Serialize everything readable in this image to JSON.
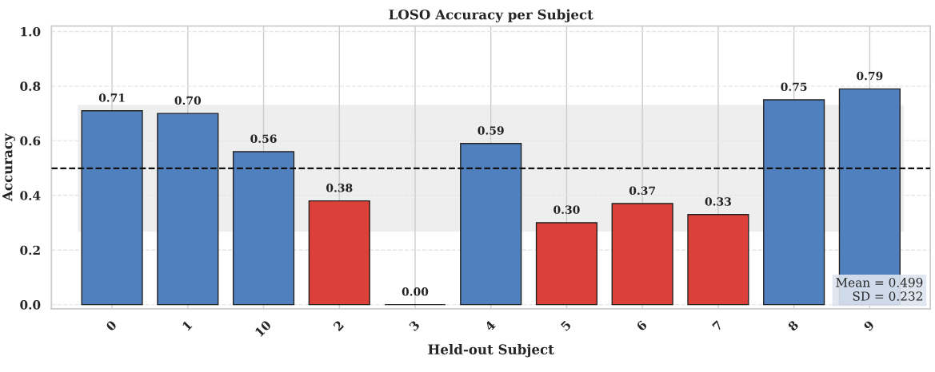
{
  "chart_data": {
    "type": "bar",
    "title": "LOSO Accuracy per Subject",
    "xlabel": "Held-out Subject",
    "ylabel": "Accuracy",
    "categories": [
      "0",
      "1",
      "10",
      "2",
      "3",
      "4",
      "5",
      "6",
      "7",
      "8",
      "9"
    ],
    "values": [
      0.71,
      0.7,
      0.56,
      0.38,
      0.0,
      0.59,
      0.3,
      0.37,
      0.33,
      0.75,
      0.79
    ],
    "value_labels": [
      "0.71",
      "0.70",
      "0.56",
      "0.38",
      "0.00",
      "0.59",
      "0.30",
      "0.37",
      "0.33",
      "0.75",
      "0.79"
    ],
    "colors": [
      "#5080bd",
      "#5080bd",
      "#5080bd",
      "#db4039",
      "#222222",
      "#5080bd",
      "#db4039",
      "#db4039",
      "#db4039",
      "#5080bd",
      "#5080bd"
    ],
    "ylim": [
      -0.015,
      1.02
    ],
    "yticks": [
      {
        "value": 0,
        "label": "0.0"
      },
      0.2,
      0.4,
      0.6,
      0.8,
      {
        "value": 1,
        "label": "1.0"
      }
    ],
    "ref_lines": [
      {
        "axis": "y",
        "value": 0.499,
        "color": "#111111",
        "line_style": "dashed"
      }
    ],
    "bands": [
      {
        "axis": "y",
        "from": 0.267,
        "to": 0.731,
        "color": "#eeeeee"
      }
    ],
    "annotations": [
      "Mean = 0.499\nSD = 0.232"
    ],
    "grid": true
  }
}
